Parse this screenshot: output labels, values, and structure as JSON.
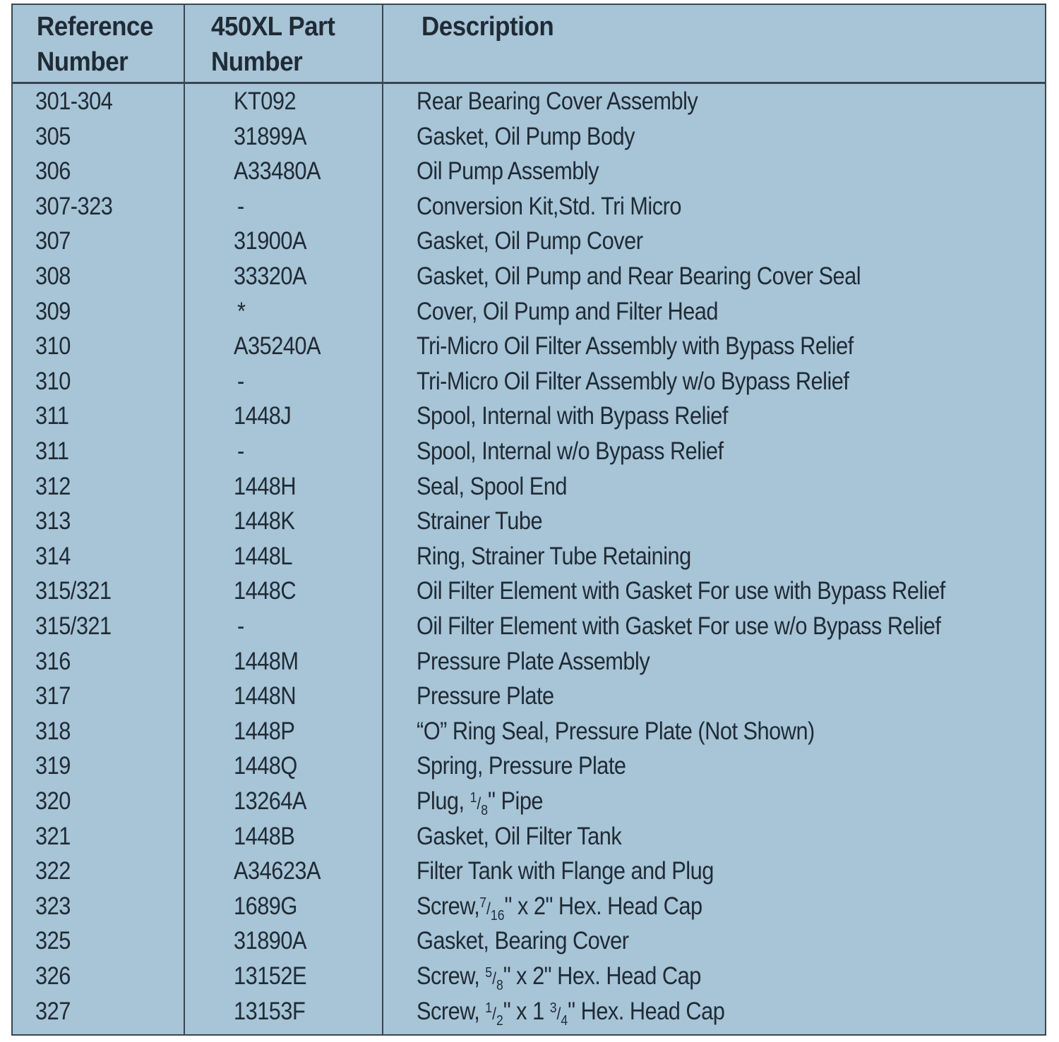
{
  "colors": {
    "background": "#a8c4d7",
    "text": "#1f2b35",
    "rule": "#3a4650"
  },
  "headers": {
    "ref": [
      "Reference",
      "Number"
    ],
    "part": [
      "450XL Part",
      "Number"
    ],
    "desc": "Description"
  },
  "rows": [
    {
      "ref": "301-304",
      "part": "KT092",
      "desc": [
        "Rear Bearing Cover Assembly"
      ]
    },
    {
      "ref": "305",
      "part": "31899A",
      "desc": [
        "Gasket, Oil Pump Body"
      ]
    },
    {
      "ref": "306",
      "part": "A33480A",
      "desc": [
        "Oil Pump Assembly"
      ]
    },
    {
      "ref": "307-323",
      "part": "-",
      "desc": [
        "Conversion Kit,Std. Tri Micro"
      ]
    },
    {
      "ref": "307",
      "part": "31900A",
      "desc": [
        "Gasket, Oil Pump Cover"
      ]
    },
    {
      "ref": "308",
      "part": "33320A",
      "desc": [
        "Gasket, Oil Pump and Rear Bearing Cover Seal"
      ]
    },
    {
      "ref": "309",
      "part": "*",
      "desc": [
        "Cover, Oil Pump and Filter Head"
      ]
    },
    {
      "ref": "310",
      "part": "A35240A",
      "desc": [
        "Tri-Micro Oil Filter Assembly with Bypass Relief"
      ]
    },
    {
      "ref": "310",
      "part": "-",
      "desc": [
        "Tri-Micro Oil Filter Assembly w/o Bypass Relief"
      ]
    },
    {
      "ref": "311",
      "part": "1448J",
      "desc": [
        "Spool, Internal with Bypass Relief"
      ]
    },
    {
      "ref": "311",
      "part": "-",
      "desc": [
        "Spool, Internal w/o Bypass Relief"
      ]
    },
    {
      "ref": "312",
      "part": "1448H",
      "desc": [
        "Seal, Spool End"
      ]
    },
    {
      "ref": "313",
      "part": "1448K",
      "desc": [
        "Strainer Tube"
      ]
    },
    {
      "ref": "314",
      "part": "1448L",
      "desc": [
        "Ring, Strainer Tube Retaining"
      ]
    },
    {
      "ref": "315/321",
      "part": "1448C",
      "desc": [
        "Oil Filter Element with Gasket For use with Bypass Relief"
      ]
    },
    {
      "ref": "315/321",
      "part": "-",
      "desc": [
        "Oil Filter Element with Gasket For use w/o Bypass Relief"
      ]
    },
    {
      "ref": "316",
      "part": "1448M",
      "desc": [
        "Pressure Plate Assembly"
      ]
    },
    {
      "ref": "317",
      "part": "1448N",
      "desc": [
        "Pressure Plate"
      ]
    },
    {
      "ref": "318",
      "part": "1448P",
      "desc": [
        "“O” Ring Seal, Pressure Plate (Not Shown)"
      ]
    },
    {
      "ref": "319",
      "part": "1448Q",
      "desc": [
        "Spring, Pressure Plate"
      ]
    },
    {
      "ref": "320",
      "part": "13264A",
      "desc": [
        "Plug, ",
        {
          "n": "1",
          "d": "8"
        },
        "\" Pipe"
      ]
    },
    {
      "ref": "321",
      "part": "1448B",
      "desc": [
        "Gasket, Oil Filter Tank"
      ]
    },
    {
      "ref": "322",
      "part": "A34623A",
      "desc": [
        "Filter Tank with Flange and Plug"
      ]
    },
    {
      "ref": "323",
      "part": "1689G",
      "desc": [
        "Screw,",
        {
          "n": "7",
          "d": "16"
        },
        "\" x 2\" Hex. Head Cap"
      ]
    },
    {
      "ref": "325",
      "part": "31890A",
      "desc": [
        "Gasket, Bearing Cover"
      ]
    },
    {
      "ref": "326",
      "part": "13152E",
      "desc": [
        "Screw, ",
        {
          "n": "5",
          "d": "8"
        },
        "\" x 2\"  Hex. Head Cap"
      ]
    },
    {
      "ref": "327",
      "part": "13153F",
      "desc": [
        "Screw, ",
        {
          "n": "1",
          "d": "2"
        },
        "\" x 1 ",
        {
          "n": "3",
          "d": "4"
        },
        "\" Hex. Head Cap"
      ]
    }
  ]
}
